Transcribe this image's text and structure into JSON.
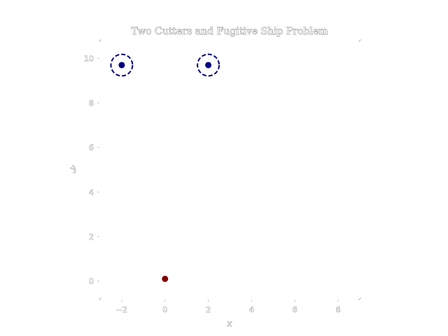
{
  "chart_data": {
    "type": "scatter",
    "title": "Two Cutters and Fugitive Ship Problem",
    "xlabel": "x",
    "ylabel": "y",
    "xlim": [
      -3,
      9
    ],
    "ylim": [
      -0.8,
      10.8
    ],
    "xticks": [
      -2,
      0,
      2,
      4,
      6,
      8
    ],
    "xtick_labels": [
      "−2",
      "0",
      "2",
      "4",
      "6",
      "8"
    ],
    "yticks": [
      0,
      2,
      4,
      6,
      8,
      10
    ],
    "ytick_labels": [
      "0",
      "2",
      "4",
      "6",
      "8",
      "10"
    ],
    "grid": false,
    "legend": "none",
    "cutters": {
      "color": "#00007f",
      "ring_radius": 1,
      "ring_style": "dashed",
      "points": [
        {
          "x": -2,
          "y": 9.7
        },
        {
          "x": 2,
          "y": 9.7
        }
      ]
    },
    "fugitive": {
      "color": "#7f0000",
      "points": [
        {
          "x": 0,
          "y": 0.1
        }
      ]
    }
  }
}
